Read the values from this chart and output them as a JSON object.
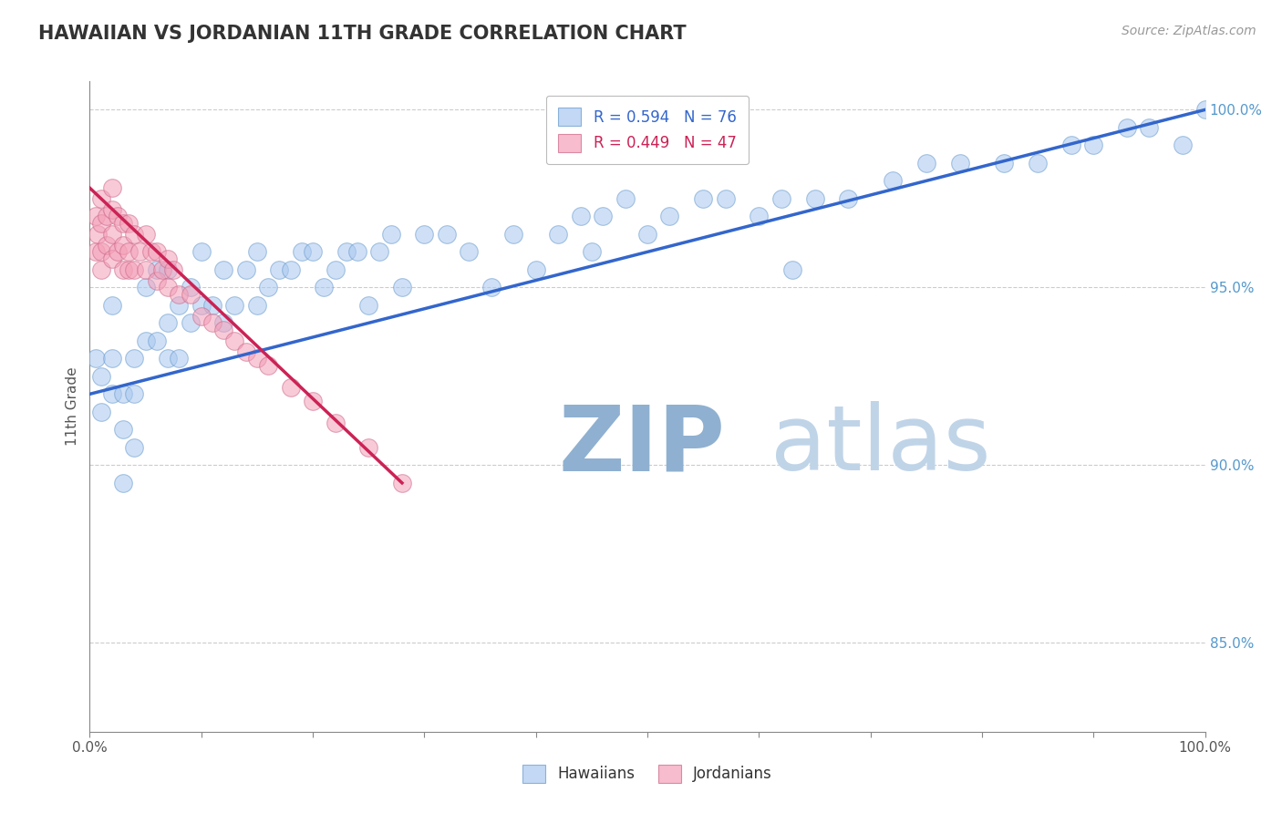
{
  "title": "HAWAIIAN VS JORDANIAN 11TH GRADE CORRELATION CHART",
  "source_text": "Source: ZipAtlas.com",
  "ylabel": "11th Grade",
  "xlim": [
    0,
    1.0
  ],
  "ylim": [
    0.825,
    1.008
  ],
  "yticks": [
    0.85,
    0.9,
    0.95,
    1.0
  ],
  "ytick_labels": [
    "85.0%",
    "90.0%",
    "95.0%",
    "100.0%"
  ],
  "hawaiian_R": 0.594,
  "hawaiian_N": 76,
  "jordanian_R": 0.449,
  "jordanian_N": 47,
  "hawaiian_color": "#a8c8f0",
  "jordanian_color": "#f4a0b8",
  "hawaiian_line_color": "#3366cc",
  "jordanian_line_color": "#cc2255",
  "background_color": "#ffffff",
  "grid_color": "#cccccc",
  "title_color": "#333333",
  "watermark_color_zip": "#b8cce4",
  "watermark_color_atlas": "#c8d8e8",
  "hawaiian_x": [
    0.005,
    0.01,
    0.01,
    0.02,
    0.02,
    0.02,
    0.03,
    0.03,
    0.03,
    0.04,
    0.04,
    0.04,
    0.05,
    0.05,
    0.06,
    0.06,
    0.07,
    0.07,
    0.07,
    0.08,
    0.08,
    0.09,
    0.09,
    0.1,
    0.1,
    0.11,
    0.12,
    0.12,
    0.13,
    0.14,
    0.15,
    0.15,
    0.16,
    0.17,
    0.18,
    0.19,
    0.2,
    0.21,
    0.22,
    0.23,
    0.24,
    0.25,
    0.26,
    0.27,
    0.28,
    0.3,
    0.32,
    0.34,
    0.36,
    0.38,
    0.4,
    0.42,
    0.44,
    0.45,
    0.46,
    0.48,
    0.5,
    0.52,
    0.55,
    0.57,
    0.6,
    0.62,
    0.63,
    0.65,
    0.68,
    0.72,
    0.75,
    0.78,
    0.82,
    0.85,
    0.88,
    0.9,
    0.93,
    0.95,
    0.98,
    1.0
  ],
  "hawaiian_y": [
    0.93,
    0.915,
    0.925,
    0.92,
    0.93,
    0.945,
    0.895,
    0.91,
    0.92,
    0.93,
    0.905,
    0.92,
    0.935,
    0.95,
    0.935,
    0.955,
    0.93,
    0.94,
    0.955,
    0.93,
    0.945,
    0.94,
    0.95,
    0.945,
    0.96,
    0.945,
    0.94,
    0.955,
    0.945,
    0.955,
    0.945,
    0.96,
    0.95,
    0.955,
    0.955,
    0.96,
    0.96,
    0.95,
    0.955,
    0.96,
    0.96,
    0.945,
    0.96,
    0.965,
    0.95,
    0.965,
    0.965,
    0.96,
    0.95,
    0.965,
    0.955,
    0.965,
    0.97,
    0.96,
    0.97,
    0.975,
    0.965,
    0.97,
    0.975,
    0.975,
    0.97,
    0.975,
    0.955,
    0.975,
    0.975,
    0.98,
    0.985,
    0.985,
    0.985,
    0.985,
    0.99,
    0.99,
    0.995,
    0.995,
    0.99,
    1.0
  ],
  "jordanian_x": [
    0.005,
    0.005,
    0.007,
    0.01,
    0.01,
    0.01,
    0.01,
    0.015,
    0.015,
    0.02,
    0.02,
    0.02,
    0.02,
    0.025,
    0.025,
    0.03,
    0.03,
    0.03,
    0.035,
    0.035,
    0.035,
    0.04,
    0.04,
    0.045,
    0.05,
    0.05,
    0.055,
    0.06,
    0.06,
    0.065,
    0.07,
    0.07,
    0.075,
    0.08,
    0.09,
    0.1,
    0.11,
    0.12,
    0.13,
    0.14,
    0.15,
    0.16,
    0.18,
    0.2,
    0.22,
    0.25,
    0.28
  ],
  "jordanian_y": [
    0.96,
    0.97,
    0.965,
    0.955,
    0.96,
    0.968,
    0.975,
    0.962,
    0.97,
    0.958,
    0.965,
    0.972,
    0.978,
    0.96,
    0.97,
    0.955,
    0.962,
    0.968,
    0.955,
    0.96,
    0.968,
    0.955,
    0.965,
    0.96,
    0.955,
    0.965,
    0.96,
    0.952,
    0.96,
    0.955,
    0.95,
    0.958,
    0.955,
    0.948,
    0.948,
    0.942,
    0.94,
    0.938,
    0.935,
    0.932,
    0.93,
    0.928,
    0.922,
    0.918,
    0.912,
    0.905,
    0.895
  ],
  "hawaiian_trendline_x": [
    0.0,
    1.0
  ],
  "hawaiian_trendline_y": [
    0.92,
    1.0
  ],
  "jordanian_trendline_x": [
    0.0,
    0.28
  ],
  "jordanian_trendline_y": [
    0.978,
    0.895
  ]
}
